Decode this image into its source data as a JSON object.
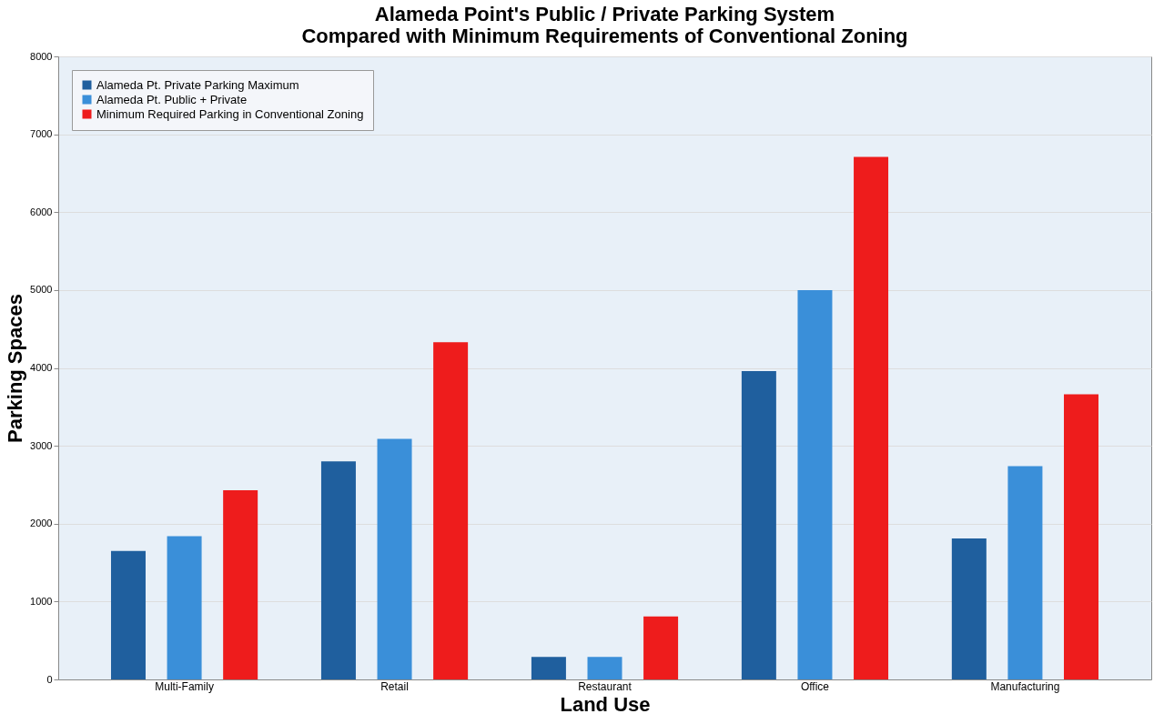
{
  "chart_data": {
    "type": "bar",
    "title": [
      "Alameda Point's Public / Private Parking System",
      "Compared with Minimum Requirements of Conventional Zoning"
    ],
    "xlabel": "Land Use",
    "ylabel": "Parking Spaces",
    "categories": [
      "Multi-Family",
      "Retail",
      "Restaurant",
      "Office",
      "Manufacturing"
    ],
    "series": [
      {
        "name": "Alameda Pt. Private Parking Maximum",
        "color": "#1f5f9e",
        "values": [
          1650,
          2800,
          290,
          3960,
          1810
        ]
      },
      {
        "name": "Alameda Pt. Public + Private",
        "color": "#3a8fd9",
        "values": [
          1840,
          3090,
          290,
          5000,
          2740
        ]
      },
      {
        "name": "Minimum Required Parking in Conventional Zoning",
        "color": "#ee1c1c",
        "values": [
          2430,
          4330,
          810,
          6710,
          3660
        ]
      }
    ],
    "ylim": [
      0,
      8000
    ],
    "yticks": [
      0,
      1000,
      2000,
      3000,
      4000,
      5000,
      6000,
      7000,
      8000
    ],
    "grid": "y",
    "legend": "top left"
  }
}
